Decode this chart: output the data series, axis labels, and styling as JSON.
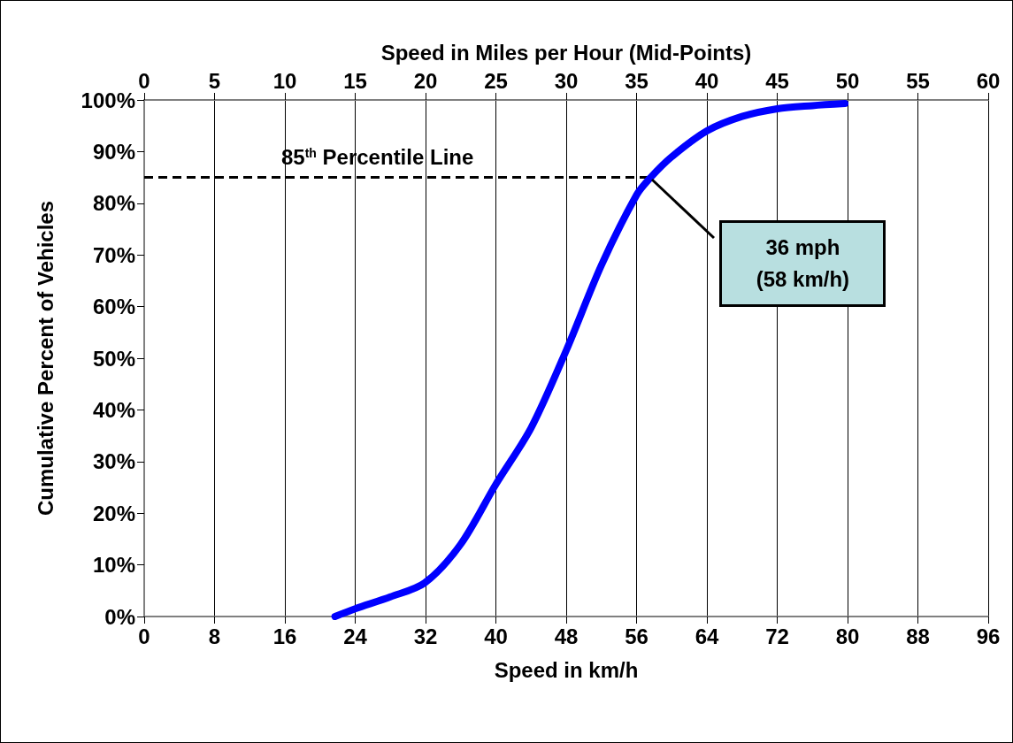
{
  "chart_data": {
    "type": "line",
    "xlabel": "Speed in km/h",
    "ylabel": "Cumulative Percent of Vehicles",
    "x2label": "Speed in Miles per Hour (Mid-Points)",
    "x": [
      21.7,
      24,
      28,
      31.9,
      36,
      40,
      44,
      48,
      52,
      56,
      57.6,
      60,
      64,
      68,
      72,
      76,
      79.7
    ],
    "series": [
      {
        "color": "#0000ff",
        "values": [
          0,
          1.5,
          3.8,
          6.5,
          14,
          25.6,
          36.5,
          51.5,
          68,
          81.6,
          85,
          89,
          94,
          96.8,
          98.3,
          98.9,
          99.3
        ]
      }
    ],
    "xlim": [
      0,
      96
    ],
    "xticks": [
      0,
      8,
      16,
      24,
      32,
      40,
      48,
      56,
      64,
      72,
      80,
      88,
      96
    ],
    "x2lim": [
      0,
      60
    ],
    "x2ticks": [
      0,
      5,
      10,
      15,
      20,
      25,
      30,
      35,
      40,
      45,
      50,
      55,
      60
    ],
    "ylim": [
      0,
      100
    ],
    "yticks": [
      {
        "value": 0,
        "label": "0%"
      },
      {
        "value": 10,
        "label": "10%"
      },
      {
        "value": 20,
        "label": "20%"
      },
      {
        "value": 30,
        "label": "30%"
      },
      {
        "value": 40,
        "label": "40%"
      },
      {
        "value": 50,
        "label": "50%"
      },
      {
        "value": 60,
        "label": "60%"
      },
      {
        "value": 70,
        "label": "70%"
      },
      {
        "value": 80,
        "label": "80%"
      },
      {
        "value": 90,
        "label": "90%"
      },
      {
        "value": 100,
        "label": "100%"
      }
    ],
    "ref_lines": [
      {
        "axis": "y",
        "value": 85,
        "label": "85$^{th}$ Percentile Line",
        "color": "#000000",
        "line_style": "dashed"
      }
    ],
    "annotations": [
      "36 mph\n(58 km/h)"
    ],
    "grid": "x",
    "marker": "none",
    "line_style": "solid"
  }
}
